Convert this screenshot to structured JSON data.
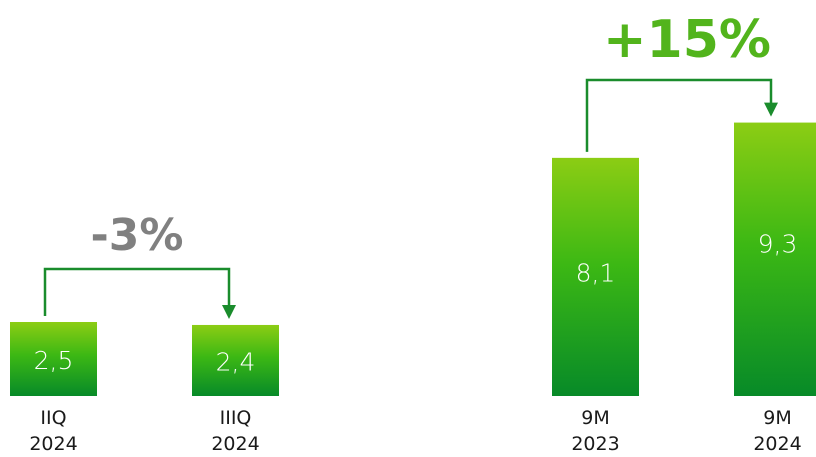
{
  "chart_data": {
    "type": "bar",
    "groups": [
      {
        "categories": [
          [
            "IIQ",
            "2024"
          ],
          [
            "IIIQ",
            "2024"
          ]
        ],
        "values": [
          2.5,
          2.4
        ],
        "value_labels": [
          "2,5",
          "2,4"
        ],
        "change_label": "-3%",
        "change_color": "#808080"
      },
      {
        "categories": [
          [
            "9M",
            "2023"
          ],
          [
            "9M",
            "2024"
          ]
        ],
        "values": [
          8.1,
          9.3
        ],
        "value_labels": [
          "8,1",
          "9,3"
        ],
        "change_label": "+15%",
        "change_color": "#52b41c"
      }
    ],
    "colors": {
      "bar_top": "#8ccd14",
      "bar_mid": "#3cb814",
      "bar_bottom": "#078a28",
      "connector": "#1a8c2c"
    }
  }
}
